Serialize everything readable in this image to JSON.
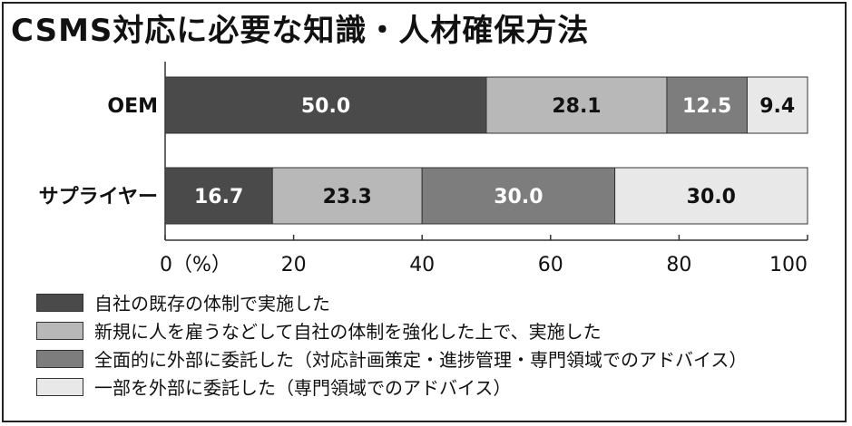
{
  "title": "CSMS対応に必要な知識・人材確保方法",
  "chart_data": {
    "type": "bar",
    "orientation": "horizontal",
    "stacked": true,
    "categories": [
      "OEM",
      "サプライヤー"
    ],
    "series": [
      {
        "name": "自社の既存の体制で実施した",
        "values": [
          50.0,
          16.7
        ],
        "color": "#4a4a4a",
        "label_color": "#ffffff"
      },
      {
        "name": "新規に人を雇うなどして自社の体制を強化した上で、実施した",
        "values": [
          28.1,
          23.3
        ],
        "color": "#b8b8b8",
        "label_color": "#111111"
      },
      {
        "name": "全面的に外部に委託した（対応計画策定・進捗管理・専門領域でのアドバイス）",
        "values": [
          12.5,
          30.0
        ],
        "color": "#7d7d7d",
        "label_color": "#ffffff"
      },
      {
        "name": "一部を外部に委託した（専門領域でのアドバイス）",
        "values": [
          9.4,
          30.0
        ],
        "color": "#e8e8e8",
        "label_color": "#111111"
      }
    ],
    "value_labels": [
      [
        "50.0",
        "28.1",
        "12.5",
        "9.4"
      ],
      [
        "16.7",
        "23.3",
        "30.0",
        "30.0"
      ]
    ],
    "xlim": [
      0,
      100
    ],
    "xticks": [
      0,
      20,
      40,
      60,
      80,
      100
    ],
    "xtick_labels": [
      "0（%）",
      "20",
      "40",
      "60",
      "80",
      "100"
    ],
    "grid": false,
    "legend_position": "bottom"
  }
}
